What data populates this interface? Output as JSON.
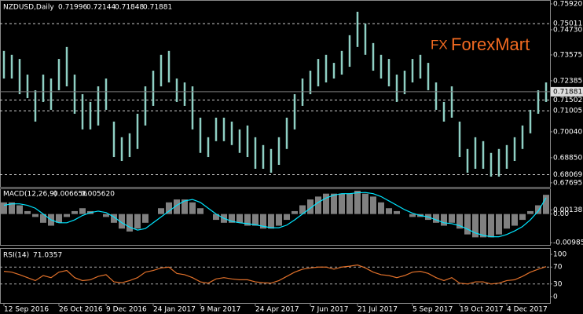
{
  "chart_data": {
    "type": "ohlc",
    "symbol": "NZDUSD,Daily",
    "ohlc": [
      0.71996,
      0.72144,
      0.71848,
      0.71881
    ],
    "logo_mark": "FX",
    "logo": "ForexMart",
    "color": "#8fd0c4",
    "categories": [
      "12 Sep 2016",
      null,
      null,
      null,
      null,
      null,
      null,
      "26 Oct 2016",
      null,
      null,
      null,
      null,
      null,
      "9 Dec 2016",
      null,
      null,
      null,
      null,
      null,
      "24 Jan 2017",
      null,
      null,
      null,
      null,
      null,
      "9 Mar 2017",
      null,
      null,
      null,
      null,
      null,
      null,
      "24 Apr 2017",
      null,
      null,
      null,
      null,
      null,
      null,
      "7 Jun 2017",
      null,
      null,
      null,
      null,
      null,
      "21 Jul 2017",
      null,
      null,
      null,
      null,
      null,
      null,
      "5 Sep 2017",
      null,
      null,
      null,
      null,
      null,
      "19 Oct 2017",
      null,
      null,
      null,
      null,
      null,
      "4 Dec 2017",
      null,
      null,
      null,
      null,
      null
    ],
    "high": [
      0.7376,
      0.7358,
      0.7339,
      0.7267,
      0.7195,
      0.7267,
      0.7249,
      0.7339,
      0.7394,
      0.7267,
      0.7177,
      0.7141,
      0.7213,
      0.7249,
      0.7051,
      0.6979,
      0.6997,
      0.7087,
      0.7213,
      0.7285,
      0.7358,
      0.7376,
      0.7249,
      0.7231,
      0.7213,
      0.7069,
      0.6979,
      0.7069,
      0.7069,
      0.7051,
      0.7015,
      0.7033,
      0.6979,
      0.6943,
      0.6925,
      0.6979,
      0.7069,
      0.7177,
      0.7249,
      0.7285,
      0.7339,
      0.7358,
      0.7321,
      0.7376,
      0.7448,
      0.7556,
      0.7502,
      0.7412,
      0.7358,
      0.7339,
      0.7267,
      0.7285,
      0.7339,
      0.7358,
      0.7321,
      0.7231,
      0.7141,
      0.7213,
      0.7051,
      0.6925,
      0.6979,
      0.6961,
      0.6907,
      0.6925,
      0.6943,
      0.6979,
      0.7033,
      0.7105,
      0.7195,
      0.7231
    ],
    "low": [
      0.7249,
      0.7249,
      0.7177,
      0.7159,
      0.7051,
      0.7141,
      0.7105,
      0.7195,
      0.7213,
      0.7087,
      0.7015,
      0.7015,
      0.7033,
      0.7105,
      0.6888,
      0.687,
      0.6888,
      0.6925,
      0.7033,
      0.7123,
      0.7213,
      0.7231,
      0.7141,
      0.7123,
      0.7015,
      0.6907,
      0.6888,
      0.6961,
      0.6961,
      0.6943,
      0.6907,
      0.6888,
      0.6834,
      0.6834,
      0.6816,
      0.6852,
      0.6925,
      0.7015,
      0.7123,
      0.7177,
      0.7213,
      0.7231,
      0.7249,
      0.7267,
      0.7303,
      0.7394,
      0.7358,
      0.7285,
      0.7249,
      0.7213,
      0.7141,
      0.7177,
      0.7231,
      0.7249,
      0.7195,
      0.7105,
      0.7051,
      0.7069,
      0.6888,
      0.6816,
      0.6834,
      0.6834,
      0.6798,
      0.6798,
      0.6834,
      0.687,
      0.6925,
      0.6997,
      0.7087,
      0.7141
    ],
    "ylim": [
      0.6751,
      0.761
    ],
    "yticks": [
      {
        "value": 0.7592,
        "label": "0.75920"
      },
      {
        "value": 0.7473,
        "label": "0.74730"
      },
      0.73575,
      0.72385,
      {
        "value": 0.7004,
        "label": "0.70040"
      },
      {
        "value": 0.6885,
        "label": "0.68850"
      },
      0.67695
    ],
    "hlines": [
      0.75011,
      0.71502,
      0.71005,
      0.68069
    ],
    "macd": {
      "name": "MACD(12,26,9)",
      "header": [
        0.006656,
        0.00562
      ],
      "header_labels": [
        "0.006656",
        "0.005620"
      ],
      "hist_color": "#808080",
      "signal_color": "#00e5ff",
      "main": [
        0.004,
        0.004,
        0.003,
        0.001,
        -0.001,
        -0.003,
        -0.004,
        -0.003,
        -0.001,
        0.001,
        0.002,
        0.001,
        0,
        -0.001,
        -0.003,
        -0.005,
        -0.006,
        -0.005,
        -0.003,
        0,
        0.002,
        0.004,
        0.005,
        0.005,
        0.004,
        0.002,
        0,
        -0.002,
        -0.003,
        -0.003,
        -0.003,
        -0.004,
        -0.004,
        -0.005,
        -0.005,
        -0.004,
        -0.002,
        0.001,
        0.003,
        0.005,
        0.006,
        0.007,
        0.007,
        0.007,
        0.007,
        0.008,
        0.007,
        0.006,
        0.004,
        0.002,
        0.001,
        0,
        -0.001,
        -0.001,
        -0.002,
        -0.003,
        -0.004,
        -0.003,
        -0.005,
        -0.007,
        -0.008,
        -0.008,
        -0.008,
        -0.007,
        -0.005,
        -0.004,
        -0.002,
        0.001,
        0.003,
        0.0066
      ],
      "signal": [
        0.003,
        0.0035,
        0.0035,
        0.003,
        0.002,
        0,
        -0.002,
        -0.003,
        -0.003,
        -0.002,
        -0.0005,
        0.0005,
        0.001,
        0.0005,
        -0.001,
        -0.003,
        -0.0045,
        -0.0055,
        -0.005,
        -0.003,
        -0.001,
        0.001,
        0.003,
        0.0045,
        0.005,
        0.004,
        0.002,
        0,
        -0.0015,
        -0.0025,
        -0.003,
        -0.0033,
        -0.0037,
        -0.0042,
        -0.0047,
        -0.0047,
        -0.0038,
        -0.002,
        0,
        0.002,
        0.004,
        0.0055,
        0.0065,
        0.007,
        0.007,
        0.0073,
        0.0074,
        0.007,
        0.006,
        0.0045,
        0.003,
        0.0015,
        0.0003,
        -0.0005,
        -0.001,
        -0.002,
        -0.003,
        -0.0033,
        -0.004,
        -0.0052,
        -0.0065,
        -0.0073,
        -0.0078,
        -0.0078,
        -0.007,
        -0.0058,
        -0.0043,
        -0.002,
        0.001,
        0.0056
      ],
      "ylim": [
        -0.0106,
        0.0088
      ],
      "yticks": [
        0.00138,
        {
          "value": 0,
          "label": "0.00"
        },
        -0.00985
      ]
    },
    "rsi": {
      "name": "RSI(14)",
      "color": "#e0702a",
      "values": [
        60,
        58,
        52,
        45,
        38,
        50,
        45,
        58,
        62,
        45,
        38,
        40,
        48,
        52,
        35,
        33,
        38,
        45,
        58,
        62,
        68,
        70,
        55,
        52,
        45,
        35,
        32,
        42,
        45,
        42,
        40,
        40,
        35,
        33,
        32,
        38,
        48,
        58,
        65,
        68,
        70,
        70,
        65,
        70,
        72,
        75,
        68,
        58,
        52,
        50,
        45,
        50,
        58,
        60,
        55,
        45,
        38,
        45,
        32,
        30,
        35,
        35,
        30,
        32,
        38,
        40,
        48,
        58,
        65,
        71.0357
      ],
      "ylim": [
        -15,
        115
      ],
      "yticks": [
        100,
        70,
        30,
        0
      ],
      "levels": [
        70,
        30
      ]
    }
  }
}
